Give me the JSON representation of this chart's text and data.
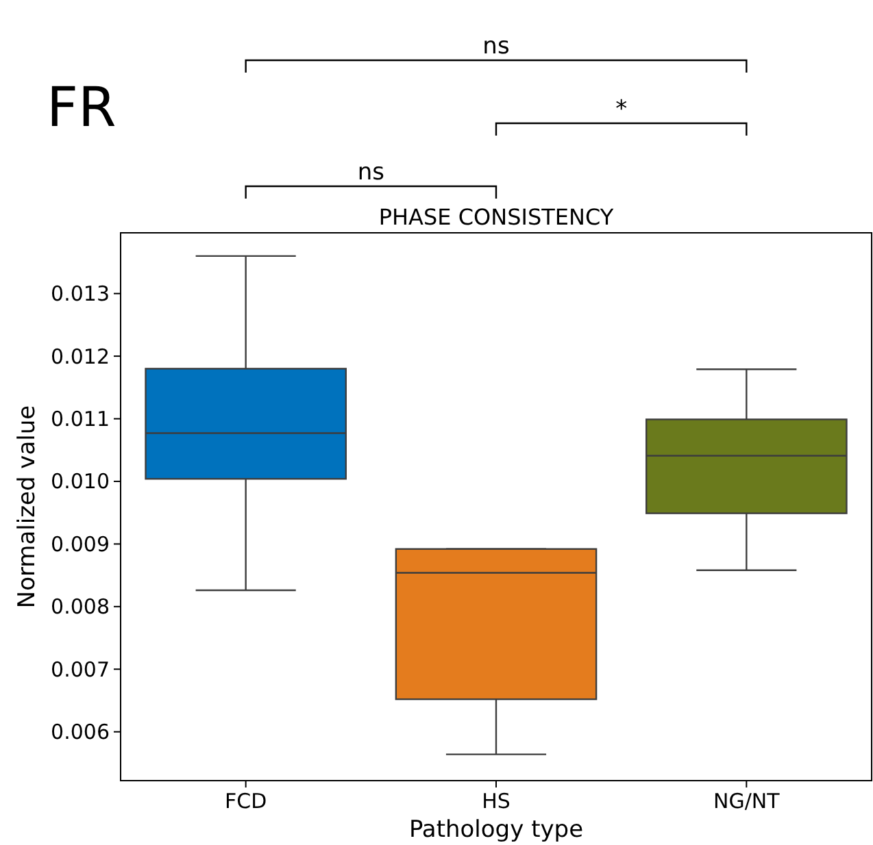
{
  "chart_data": {
    "type": "box",
    "title": "PHASE CONSISTENCY",
    "xlabel": "Pathology type",
    "ylabel": "Normalized value",
    "categories": [
      "FCD",
      "HS",
      "NG/NT"
    ],
    "colors": [
      "#0072bd",
      "#e47c1e",
      "#6a7a1c"
    ],
    "boxes": [
      {
        "low": 0.00826,
        "q1": 0.01004,
        "median": 0.01077,
        "q3": 0.0118,
        "high": 0.0136
      },
      {
        "low": 0.00564,
        "q1": 0.00652,
        "median": 0.00854,
        "q3": 0.00892,
        "high": 0.00892
      },
      {
        "low": 0.00858,
        "q1": 0.00949,
        "median": 0.01041,
        "q3": 0.01099,
        "high": 0.01179
      }
    ],
    "ylim": [
      0.00522,
      0.01397
    ],
    "yticks": [
      0.006,
      0.007,
      0.008,
      0.009,
      {
        "value": 0.01,
        "label": "0.010"
      },
      0.011,
      0.012,
      0.013
    ],
    "annotations": [
      "FR",
      "ns",
      "*",
      "ns"
    ]
  }
}
